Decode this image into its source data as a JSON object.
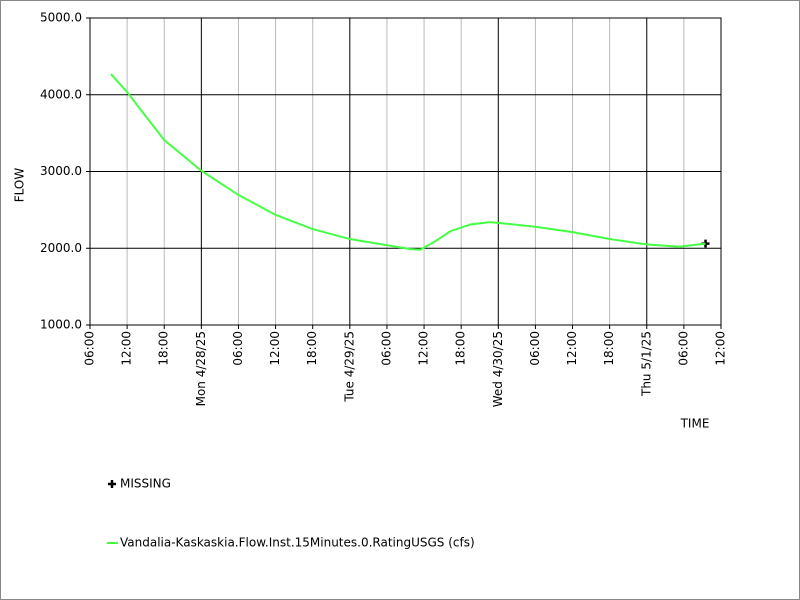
{
  "chart_data": {
    "type": "line",
    "xlabel": "TIME",
    "ylabel": "FLOW",
    "xlim": [
      0,
      102
    ],
    "ylim": [
      1000,
      5000
    ],
    "yticks": [
      {
        "value": 1000,
        "label": "1000.0"
      },
      {
        "value": 2000,
        "label": "2000.0"
      },
      {
        "value": 3000,
        "label": "3000.0"
      },
      {
        "value": 4000,
        "label": "4000.0"
      },
      {
        "value": 5000,
        "label": "5000.0"
      }
    ],
    "xticks": [
      {
        "value": 0,
        "label": "06:00"
      },
      {
        "value": 6,
        "label": "12:00"
      },
      {
        "value": 12,
        "label": "18:00"
      },
      {
        "value": 18,
        "label": "Mon 4/28/25"
      },
      {
        "value": 24,
        "label": "06:00"
      },
      {
        "value": 30,
        "label": "12:00"
      },
      {
        "value": 36,
        "label": "18:00"
      },
      {
        "value": 42,
        "label": "Tue 4/29/25"
      },
      {
        "value": 48,
        "label": "06:00"
      },
      {
        "value": 54,
        "label": "12:00"
      },
      {
        "value": 60,
        "label": "18:00"
      },
      {
        "value": 66,
        "label": "Wed 4/30/25"
      },
      {
        "value": 72,
        "label": "06:00"
      },
      {
        "value": 78,
        "label": "12:00"
      },
      {
        "value": 84,
        "label": "18:00"
      },
      {
        "value": 90,
        "label": "Thu 5/1/25"
      },
      {
        "value": 96,
        "label": "06:00"
      },
      {
        "value": 102,
        "label": "12:00"
      }
    ],
    "major_xticks": [
      18,
      42,
      66,
      90
    ],
    "grid": true,
    "series": [
      {
        "name": "MISSING",
        "color": "#000000",
        "marker": "plus",
        "x": [
          99.5
        ],
        "values": [
          2060
        ]
      },
      {
        "name": "Vandalia-Kaskaskia.Flow.Inst.15Minutes.0.RatingUSGS (cfs)",
        "color": "#44ff44",
        "marker": "none",
        "x": [
          3.4,
          6,
          12,
          18,
          24,
          30,
          36,
          42,
          48,
          51.7,
          53.4,
          56,
          58.2,
          61.5,
          64.7,
          66,
          72,
          78,
          84,
          90,
          95.2,
          99.5
        ],
        "values": [
          4270,
          4035,
          3410,
          3010,
          2695,
          2435,
          2250,
          2120,
          2040,
          1990,
          1980,
          2100,
          2220,
          2310,
          2340,
          2330,
          2280,
          2210,
          2120,
          2050,
          2020,
          2060
        ]
      }
    ]
  }
}
